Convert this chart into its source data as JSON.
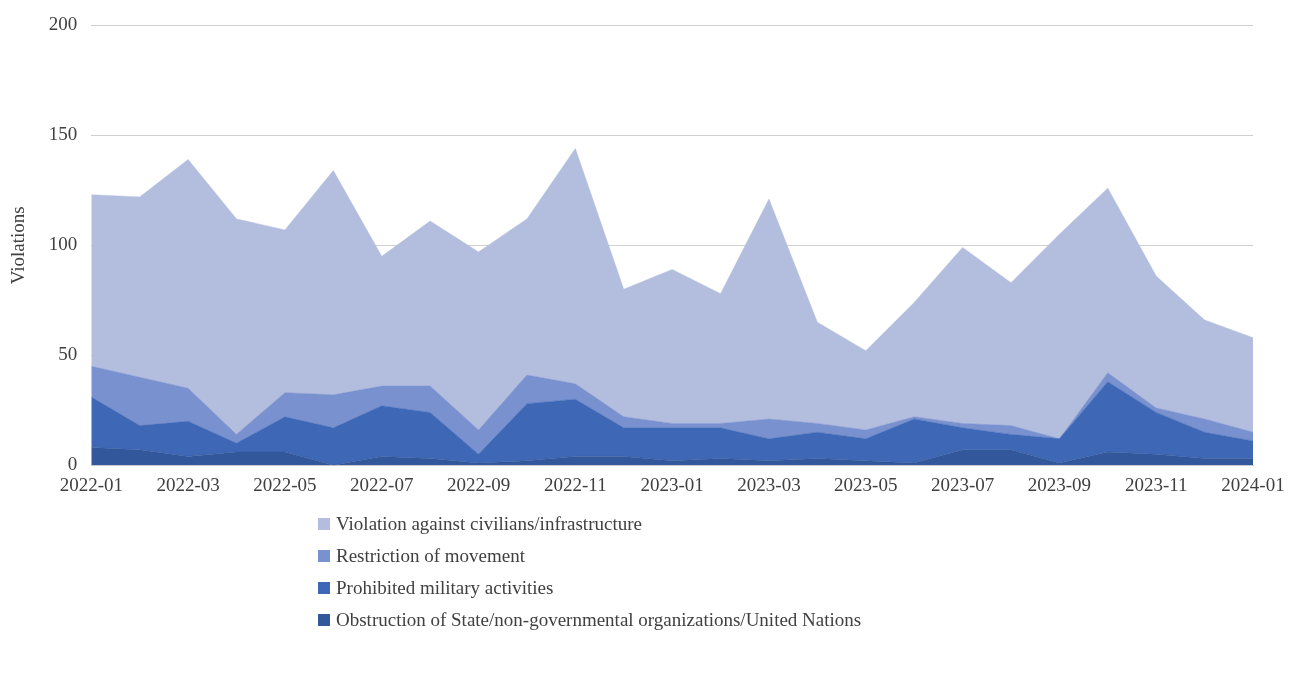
{
  "chart_data": {
    "type": "area",
    "stacked": true,
    "ylabel": "Violations",
    "x": [
      "2022-01",
      "2022-02",
      "2022-03",
      "2022-04",
      "2022-05",
      "2022-06",
      "2022-07",
      "2022-08",
      "2022-09",
      "2022-10",
      "2022-11",
      "2022-12",
      "2023-01",
      "2023-02",
      "2023-03",
      "2023-04",
      "2023-05",
      "2023-06",
      "2023-07",
      "2023-08",
      "2023-09",
      "2023-10",
      "2023-11",
      "2023-12",
      "2024-01"
    ],
    "xlim": [
      "2022-01",
      "2024-01"
    ],
    "xticks": [
      "2022-01",
      "2022-03",
      "2022-05",
      "2022-07",
      "2022-09",
      "2022-11",
      "2023-01",
      "2023-03",
      "2023-05",
      "2023-07",
      "2023-09",
      "2023-11",
      "2024-01"
    ],
    "ylim": [
      0,
      200
    ],
    "yticks": [
      0,
      50,
      100,
      150,
      200
    ],
    "grid": "y",
    "legend": "bottom",
    "series": [
      {
        "name": "Obstruction of State/non-governmental organizations/United Nations",
        "color": "#33579b",
        "values": [
          8,
          7,
          4,
          6,
          6,
          0,
          4,
          3,
          1,
          2,
          4,
          4,
          2,
          3,
          2,
          3,
          2,
          1,
          7,
          7,
          1,
          6,
          5,
          3,
          3
        ]
      },
      {
        "name": "Prohibited military activities",
        "color": "#3e68b6",
        "values": [
          23,
          11,
          16,
          4,
          16,
          17,
          23,
          21,
          4,
          26,
          26,
          13,
          15,
          14,
          10,
          12,
          10,
          20,
          10,
          7,
          11,
          32,
          19,
          12,
          8
        ]
      },
      {
        "name": "Restriction of movement",
        "color": "#7a91cf",
        "values": [
          14,
          22,
          15,
          4,
          11,
          15,
          9,
          12,
          11,
          13,
          7,
          5,
          2,
          2,
          9,
          4,
          4,
          1,
          2,
          4,
          0,
          4,
          2,
          6,
          4
        ]
      },
      {
        "name": "Violation against civilians/infrastructure",
        "color": "#b3bedf",
        "values": [
          78,
          82,
          104,
          98,
          74,
          102,
          59,
          75,
          81,
          71,
          107,
          58,
          70,
          59,
          100,
          46,
          36,
          52,
          80,
          65,
          93,
          84,
          60,
          45,
          43
        ]
      }
    ]
  }
}
